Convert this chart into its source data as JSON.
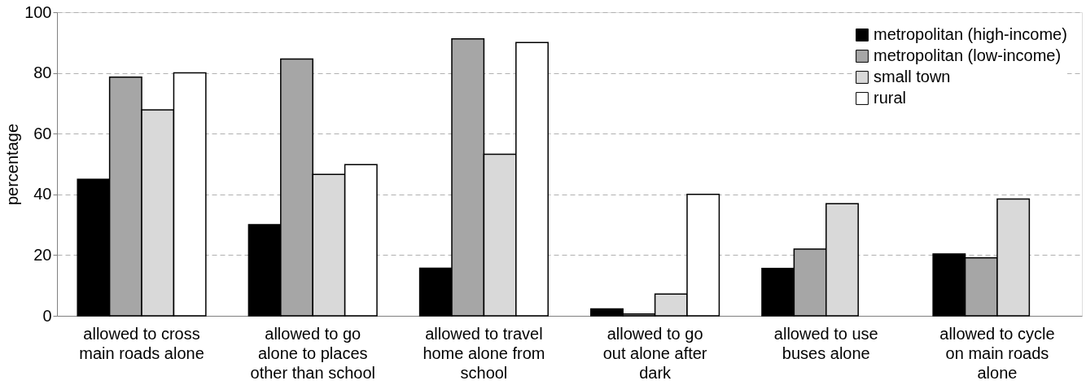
{
  "chart_data": {
    "type": "bar",
    "ylabel": "percentage",
    "categories": [
      "allowed to cross\nmain roads alone",
      "allowed to go\nalone to places\nother than school",
      "allowed to travel\nhome alone from\nschool",
      "allowed to go\nout alone after\ndark",
      "allowed to use\nbuses alone",
      "allowed to cycle\non main roads\nalone"
    ],
    "series": [
      {
        "name": "metropolitan (high-income)",
        "color": "#000000",
        "values": [
          45,
          30,
          15.7,
          2.3,
          15.6,
          20.4
        ]
      },
      {
        "name": "metropolitan (low-income)",
        "color": "#a6a6a6",
        "values": [
          78.6,
          84.6,
          91.2,
          0.6,
          22,
          19.1
        ]
      },
      {
        "name": "small town",
        "color": "#d9d9d9",
        "values": [
          67.8,
          46.6,
          53.2,
          7.2,
          36.9,
          38.5
        ]
      },
      {
        "name": "rural",
        "color": "#ffffff",
        "values": [
          80,
          49.8,
          90,
          40,
          null,
          null
        ]
      }
    ],
    "ylim": [
      0,
      100
    ],
    "yticks": [
      0,
      20,
      40,
      60,
      80,
      100
    ],
    "grid": "y",
    "legend": "top right"
  }
}
